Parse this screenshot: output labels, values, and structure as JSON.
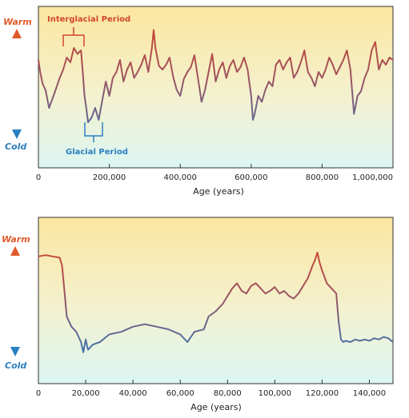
{
  "chart_data": [
    {
      "type": "line",
      "warm_label": "Warm",
      "cold_label": "Cold",
      "xlabel": "Age (years)",
      "xticks": [
        "0",
        "200,000",
        "400,000",
        "600,000",
        "800,000",
        "1,000,000"
      ],
      "xlim": [
        0,
        1000000
      ],
      "ylim": [
        0,
        1
      ],
      "annotations": {
        "interglacial": "Interglacial Period",
        "glacial": "Glacial Period"
      },
      "colors": {
        "warm": "#d2472a",
        "cold": "#2a7fc0",
        "bg_top": "#fbe6a0",
        "bg_bottom": "#dff6f3"
      },
      "series": [
        {
          "x": [
            0,
            5000,
            12000,
            20000,
            30000,
            45000,
            60000,
            70000,
            80000,
            90000,
            100000,
            110000,
            120000,
            125000,
            130000,
            135000,
            140000,
            150000,
            160000,
            170000,
            180000,
            190000,
            200000,
            210000,
            220000,
            230000,
            240000,
            250000,
            260000,
            270000,
            280000,
            290000,
            300000,
            310000,
            320000,
            325000,
            330000,
            340000,
            350000,
            360000,
            370000,
            380000,
            390000,
            400000,
            410000,
            420000,
            430000,
            440000,
            450000,
            460000,
            470000,
            480000,
            490000,
            500000,
            510000,
            520000,
            530000,
            540000,
            550000,
            560000,
            570000,
            580000,
            590000,
            600000,
            605000,
            610000,
            620000,
            630000,
            640000,
            650000,
            660000,
            670000,
            680000,
            690000,
            700000,
            710000,
            720000,
            730000,
            740000,
            750000,
            760000,
            770000,
            780000,
            790000,
            800000,
            810000,
            820000,
            830000,
            840000,
            850000,
            860000,
            870000,
            880000,
            890000,
            900000,
            910000,
            920000,
            930000,
            940000,
            950000,
            960000,
            970000,
            980000,
            990000,
            1000000
          ],
          "y": [
            0.7,
            0.6,
            0.5,
            0.45,
            0.3,
            0.42,
            0.55,
            0.62,
            0.72,
            0.68,
            0.8,
            0.75,
            0.78,
            0.6,
            0.4,
            0.3,
            0.18,
            0.22,
            0.3,
            0.2,
            0.36,
            0.52,
            0.4,
            0.55,
            0.6,
            0.7,
            0.52,
            0.62,
            0.68,
            0.55,
            0.6,
            0.66,
            0.74,
            0.6,
            0.8,
            0.95,
            0.8,
            0.65,
            0.62,
            0.66,
            0.72,
            0.56,
            0.45,
            0.4,
            0.54,
            0.6,
            0.64,
            0.74,
            0.55,
            0.35,
            0.45,
            0.6,
            0.75,
            0.52,
            0.62,
            0.68,
            0.55,
            0.65,
            0.7,
            0.6,
            0.64,
            0.72,
            0.62,
            0.4,
            0.2,
            0.25,
            0.4,
            0.35,
            0.45,
            0.52,
            0.48,
            0.66,
            0.7,
            0.62,
            0.68,
            0.72,
            0.55,
            0.6,
            0.68,
            0.78,
            0.6,
            0.55,
            0.48,
            0.6,
            0.55,
            0.62,
            0.72,
            0.66,
            0.58,
            0.64,
            0.7,
            0.78,
            0.62,
            0.25,
            0.4,
            0.44,
            0.55,
            0.62,
            0.78,
            0.85,
            0.62,
            0.7,
            0.66,
            0.72,
            0.7
          ]
        }
      ]
    },
    {
      "type": "line",
      "warm_label": "Warm",
      "cold_label": "Cold",
      "xlabel": "Age (years)",
      "xticks": [
        "0",
        "20,000",
        "40,000",
        "60,000",
        "80,000",
        "100,000",
        "120,000",
        "140,000"
      ],
      "xlim": [
        0,
        150000
      ],
      "ylim": [
        0,
        1
      ],
      "colors": {
        "warm": "#d2472a",
        "cold": "#2a7fc0",
        "bg_top": "#fbe6a0",
        "bg_bottom": "#dff6f3"
      },
      "series": [
        {
          "x": [
            0,
            3000,
            6000,
            9000,
            10000,
            11000,
            12000,
            14000,
            16000,
            18000,
            19000,
            20000,
            21000,
            23000,
            26000,
            30000,
            35000,
            40000,
            45000,
            50000,
            55000,
            60000,
            63000,
            66000,
            70000,
            72000,
            75000,
            78000,
            80000,
            82000,
            84000,
            86000,
            88000,
            90000,
            92000,
            94000,
            96000,
            98000,
            100000,
            102000,
            104000,
            106000,
            108000,
            110000,
            112000,
            114000,
            116000,
            117000,
            118000,
            119000,
            120000,
            122000,
            124000,
            126000,
            127000,
            128000,
            129000,
            130000,
            132000,
            134000,
            136000,
            138000,
            140000,
            142000,
            144000,
            146000,
            148000,
            150000
          ],
          "y": [
            0.87,
            0.88,
            0.87,
            0.86,
            0.8,
            0.6,
            0.4,
            0.32,
            0.28,
            0.2,
            0.12,
            0.22,
            0.14,
            0.18,
            0.2,
            0.26,
            0.28,
            0.32,
            0.34,
            0.32,
            0.3,
            0.26,
            0.2,
            0.28,
            0.3,
            0.4,
            0.44,
            0.5,
            0.56,
            0.62,
            0.66,
            0.6,
            0.58,
            0.64,
            0.66,
            0.62,
            0.58,
            0.6,
            0.63,
            0.58,
            0.6,
            0.56,
            0.54,
            0.58,
            0.64,
            0.7,
            0.8,
            0.84,
            0.9,
            0.82,
            0.76,
            0.66,
            0.62,
            0.58,
            0.36,
            0.22,
            0.2,
            0.21,
            0.2,
            0.22,
            0.21,
            0.22,
            0.21,
            0.23,
            0.22,
            0.24,
            0.23,
            0.2
          ]
        }
      ]
    }
  ]
}
